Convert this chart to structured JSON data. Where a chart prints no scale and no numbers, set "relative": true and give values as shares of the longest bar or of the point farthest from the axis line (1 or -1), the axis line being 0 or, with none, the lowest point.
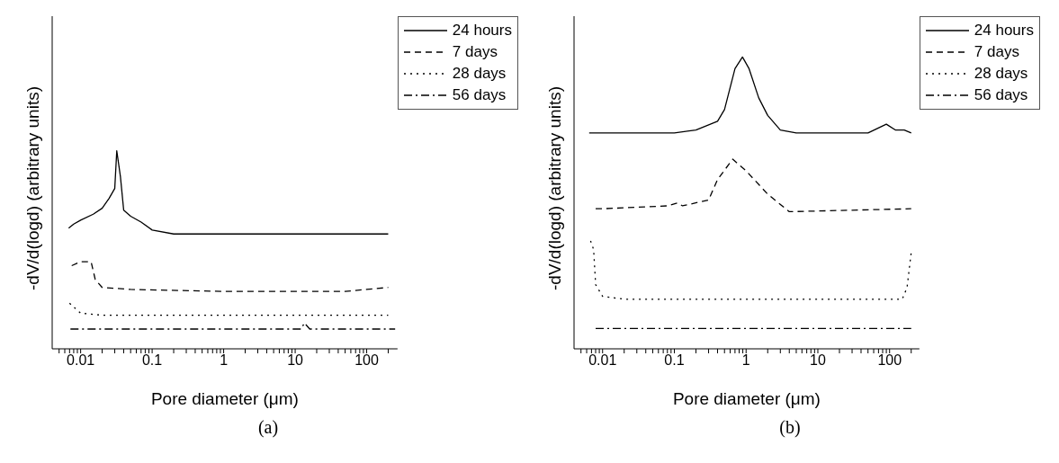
{
  "chart_data": [
    {
      "type": "line",
      "title": "(a)",
      "xlabel": "Pore diameter (μm)",
      "ylabel": "-dV/d(logd) (arbitrary units)",
      "relative": true,
      "log": "x",
      "xlim": [
        0.004,
        270
      ],
      "xticks": [
        {
          "value": 0.005,
          "label": null
        },
        {
          "value": 0.006,
          "label": null
        },
        {
          "value": 0.007,
          "label": null
        },
        {
          "value": 0.008,
          "label": null
        },
        {
          "value": 0.009,
          "label": null
        },
        0.01,
        {
          "value": 0.02,
          "label": null
        },
        {
          "value": 0.03,
          "label": null
        },
        {
          "value": 0.04,
          "label": null
        },
        {
          "value": 0.05,
          "label": null
        },
        {
          "value": 0.06,
          "label": null
        },
        {
          "value": 0.07,
          "label": null
        },
        {
          "value": 0.08,
          "label": null
        },
        {
          "value": 0.09,
          "label": null
        },
        0.1,
        {
          "value": 0.2,
          "label": null
        },
        {
          "value": 0.3,
          "label": null
        },
        {
          "value": 0.4,
          "label": null
        },
        {
          "value": 0.5,
          "label": null
        },
        {
          "value": 0.6,
          "label": null
        },
        {
          "value": 0.7,
          "label": null
        },
        {
          "value": 0.8,
          "label": null
        },
        {
          "value": 0.9,
          "label": null
        },
        1,
        {
          "value": 2,
          "label": null
        },
        {
          "value": 3,
          "label": null
        },
        {
          "value": 4,
          "label": null
        },
        {
          "value": 5,
          "label": null
        },
        {
          "value": 6,
          "label": null
        },
        {
          "value": 7,
          "label": null
        },
        {
          "value": 8,
          "label": null
        },
        {
          "value": 9,
          "label": null
        },
        10,
        {
          "value": 20,
          "label": null
        },
        {
          "value": 30,
          "label": null
        },
        {
          "value": 40,
          "label": null
        },
        {
          "value": 50,
          "label": null
        },
        {
          "value": 60,
          "label": null
        },
        {
          "value": 70,
          "label": null
        },
        {
          "value": 80,
          "label": null
        },
        {
          "value": 90,
          "label": null
        },
        100,
        {
          "value": 200,
          "label": null
        }
      ],
      "legend": "top right",
      "marker": "none",
      "series": [
        {
          "name": "24 hours",
          "color": "#000000",
          "line_style": "solid",
          "x": [
            0.0068,
            0.008,
            0.01,
            0.015,
            0.02,
            0.025,
            0.03,
            0.032,
            0.036,
            0.04,
            0.05,
            0.07,
            0.1,
            0.2,
            1,
            10,
            200
          ],
          "values": [
            0.61,
            0.63,
            0.65,
            0.68,
            0.71,
            0.76,
            0.81,
            1,
            0.87,
            0.7,
            0.67,
            0.64,
            0.6,
            0.58,
            0.58,
            0.58,
            0.58
          ]
        },
        {
          "name": "7 days",
          "color": "#000000",
          "line_style": "dashed",
          "x": [
            0.0075,
            0.01,
            0.014,
            0.016,
            0.02,
            0.05,
            1,
            50,
            100,
            200
          ],
          "values": [
            0.42,
            0.44,
            0.44,
            0.35,
            0.31,
            0.3,
            0.29,
            0.29,
            0.3,
            0.31
          ]
        },
        {
          "name": "28 days",
          "color": "#000000",
          "line_style": "dotted",
          "x": [
            0.007,
            0.01,
            0.02,
            1,
            200
          ],
          "values": [
            0.23,
            0.18,
            0.17,
            0.17,
            0.17
          ]
        },
        {
          "name": "56 days",
          "color": "#000000",
          "line_style": "dashdot",
          "x": [
            0.0072,
            12,
            13.5,
            16,
            250
          ],
          "values": [
            0.1,
            0.1,
            0.13,
            0.1,
            0.1
          ]
        }
      ]
    },
    {
      "type": "line",
      "title": "(b)",
      "xlabel": "Pore diameter (μm)",
      "ylabel": "-dV/d(logd) (arbitrary units)",
      "relative": true,
      "log": "x",
      "xlim": [
        0.004,
        260
      ],
      "xticks": [
        {
          "value": 0.005,
          "label": null
        },
        {
          "value": 0.006,
          "label": null
        },
        {
          "value": 0.007,
          "label": null
        },
        {
          "value": 0.008,
          "label": null
        },
        {
          "value": 0.009,
          "label": null
        },
        0.01,
        {
          "value": 0.02,
          "label": null
        },
        {
          "value": 0.03,
          "label": null
        },
        {
          "value": 0.04,
          "label": null
        },
        {
          "value": 0.05,
          "label": null
        },
        {
          "value": 0.06,
          "label": null
        },
        {
          "value": 0.07,
          "label": null
        },
        {
          "value": 0.08,
          "label": null
        },
        {
          "value": 0.09,
          "label": null
        },
        0.1,
        {
          "value": 0.2,
          "label": null
        },
        {
          "value": 0.3,
          "label": null
        },
        {
          "value": 0.4,
          "label": null
        },
        {
          "value": 0.5,
          "label": null
        },
        {
          "value": 0.6,
          "label": null
        },
        {
          "value": 0.7,
          "label": null
        },
        {
          "value": 0.8,
          "label": null
        },
        {
          "value": 0.9,
          "label": null
        },
        1,
        {
          "value": 2,
          "label": null
        },
        {
          "value": 3,
          "label": null
        },
        {
          "value": 4,
          "label": null
        },
        {
          "value": 5,
          "label": null
        },
        {
          "value": 6,
          "label": null
        },
        {
          "value": 7,
          "label": null
        },
        {
          "value": 8,
          "label": null
        },
        {
          "value": 9,
          "label": null
        },
        10,
        {
          "value": 20,
          "label": null
        },
        {
          "value": 30,
          "label": null
        },
        {
          "value": 40,
          "label": null
        },
        {
          "value": 50,
          "label": null
        },
        {
          "value": 60,
          "label": null
        },
        {
          "value": 70,
          "label": null
        },
        {
          "value": 80,
          "label": null
        },
        {
          "value": 90,
          "label": null
        },
        100,
        {
          "value": 200,
          "label": null
        }
      ],
      "legend": "top right",
      "marker": "none",
      "series": [
        {
          "name": "24 hours",
          "color": "#000000",
          "line_style": "solid",
          "x": [
            0.0065,
            0.01,
            0.1,
            0.2,
            0.4,
            0.5,
            0.7,
            0.89,
            1.1,
            1.5,
            2,
            3,
            5,
            10,
            50,
            90,
            120,
            160,
            200
          ],
          "values": [
            0.74,
            0.74,
            0.74,
            0.75,
            0.78,
            0.82,
            0.96,
            1,
            0.96,
            0.86,
            0.8,
            0.75,
            0.74,
            0.74,
            0.74,
            0.77,
            0.75,
            0.75,
            0.74
          ]
        },
        {
          "name": "7 days",
          "color": "#000000",
          "line_style": "dashed",
          "x": [
            0.008,
            0.01,
            0.08,
            0.11,
            0.13,
            0.3,
            0.4,
            0.65,
            1,
            2,
            4,
            200
          ],
          "values": [
            0.48,
            0.48,
            0.49,
            0.5,
            0.49,
            0.51,
            0.58,
            0.65,
            0.61,
            0.53,
            0.47,
            0.48
          ]
        },
        {
          "name": "28 days",
          "color": "#000000",
          "line_style": "dotted",
          "x": [
            0.0068,
            0.0075,
            0.008,
            0.01,
            0.02,
            150,
            175,
            200
          ],
          "values": [
            0.37,
            0.34,
            0.22,
            0.18,
            0.17,
            0.17,
            0.21,
            0.33
          ]
        },
        {
          "name": "56 days",
          "color": "#000000",
          "line_style": "dashdot",
          "x": [
            0.008,
            0.15,
            200
          ],
          "values": [
            0.07,
            0.07,
            0.07
          ]
        }
      ]
    }
  ]
}
